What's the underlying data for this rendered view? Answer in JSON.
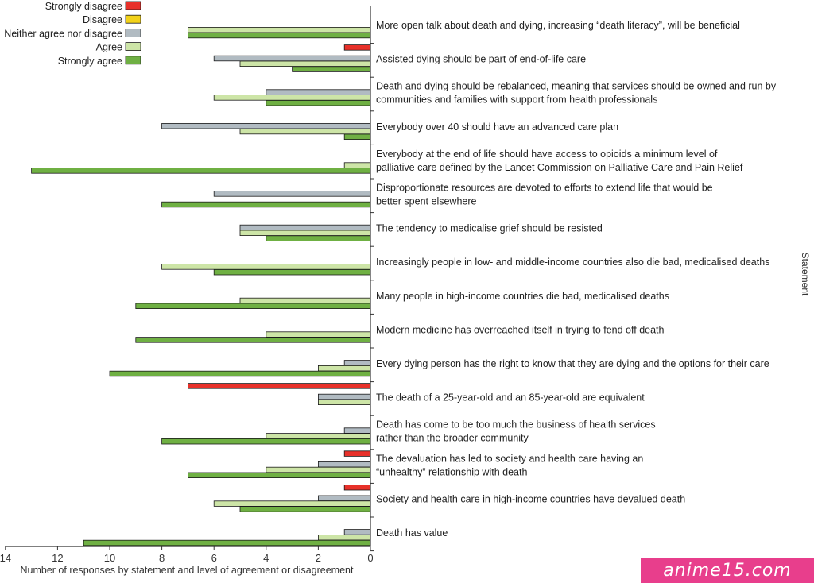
{
  "chart_data": {
    "type": "bar",
    "orientation": "horizontal",
    "x_direction": "reversed",
    "xlabel": "Number of responses by statement and level of agreement or disagreement",
    "ylabel": "Statement",
    "xlim": [
      0,
      14
    ],
    "xticks": [
      "0",
      "2",
      "4",
      "6",
      "8",
      "10",
      "12",
      "14"
    ],
    "legend_position": "top-left",
    "grid": false,
    "categories": [
      "More open talk about death and dying, increasing “death literacy”, will be beneficial",
      "Assisted dying should be part of end-of-life care",
      "Death and dying should be rebalanced, meaning that services should be owned and run by communities and families with support from health professionals",
      "Everybody over 40 should have an advanced care plan",
      "Everybody at the end of life should have access to opioids a minimum level of palliative care defined by the Lancet Commission on Palliative Care and Pain Relief",
      "Disproportionate resources are devoted to efforts to extend life that would be better spent elsewhere",
      "The tendency to medicalise grief should be resisted",
      "Increasingly people in low- and middle-income countries also die bad, medicalised deaths",
      "Many people in high-income countries die bad, medicalised deaths",
      "Modern medicine has overreached itself in trying to fend off death",
      "Every dying person has the right to know that they are dying and the options for their care",
      "The death of a 25-year-old and an 85-year-old are equivalent",
      "Death has come to be too much the business of health services rather than the broader community",
      "The devaluation has led to society and health care having an “unhealthy” relationship with death",
      "Society and health care in high-income countries have devalued death",
      "Death has value"
    ],
    "category_lines": [
      [
        "More open talk about death and dying, increasing “death literacy”, will be beneficial"
      ],
      [
        "Assisted dying should be part of end-of-life care"
      ],
      [
        "Death and dying should be rebalanced, meaning that services should be owned and run by",
        "communities and families with support from health professionals"
      ],
      [
        "Everybody over 40 should have an advanced care plan"
      ],
      [
        "Everybody at the end of life should have access to opioids a minimum level of",
        "palliative care defined by the Lancet Commission on Palliative Care and Pain Relief"
      ],
      [
        "Disproportionate resources are devoted to efforts to extend life that would be",
        "better spent elsewhere"
      ],
      [
        "The tendency to medicalise grief should be resisted"
      ],
      [
        "Increasingly people in low- and middle-income countries also die bad, medicalised deaths"
      ],
      [
        "Many people in high-income countries die bad, medicalised deaths"
      ],
      [
        "Modern medicine has overreached itself in trying to fend off death"
      ],
      [
        "Every dying person has the right to know that they are dying and the options for their care"
      ],
      [
        "The death of a 25-year-old and an 85-year-old are equivalent"
      ],
      [
        "Death has come to be too much the business of health services",
        "rather than the broader community"
      ],
      [
        "The devaluation has led to society and health care having an",
        "“unhealthy” relationship with death"
      ],
      [
        "Society and health care in high-income countries have devalued death"
      ],
      [
        "Death has value"
      ]
    ],
    "series": [
      {
        "name": "Strongly disagree",
        "color": "#e8312a",
        "values": [
          0,
          1,
          0,
          0,
          0,
          0,
          0,
          0,
          0,
          0,
          0,
          7,
          0,
          1,
          1,
          0
        ]
      },
      {
        "name": "Disagree",
        "color": "#f2d21a",
        "values": [
          0,
          0,
          0,
          0,
          0,
          0,
          0,
          0,
          0,
          0,
          0,
          0,
          0,
          0,
          0,
          0
        ]
      },
      {
        "name": "Neither agree nor disagree",
        "color": "#b1bbc2",
        "values": [
          0,
          6,
          4,
          8,
          0,
          6,
          5,
          0,
          0,
          0,
          1,
          2,
          1,
          2,
          2,
          1
        ]
      },
      {
        "name": "Agree",
        "color": "#cde5a7",
        "values": [
          7,
          5,
          6,
          5,
          1,
          0,
          5,
          8,
          5,
          4,
          2,
          2,
          4,
          4,
          6,
          2
        ]
      },
      {
        "name": "Strongly agree",
        "color": "#6fb043",
        "values": [
          7,
          3,
          4,
          1,
          13,
          8,
          4,
          6,
          9,
          9,
          10,
          0,
          8,
          7,
          5,
          11
        ]
      }
    ]
  },
  "watermark": {
    "text": "anime15.com",
    "color": "#e83e8c"
  }
}
